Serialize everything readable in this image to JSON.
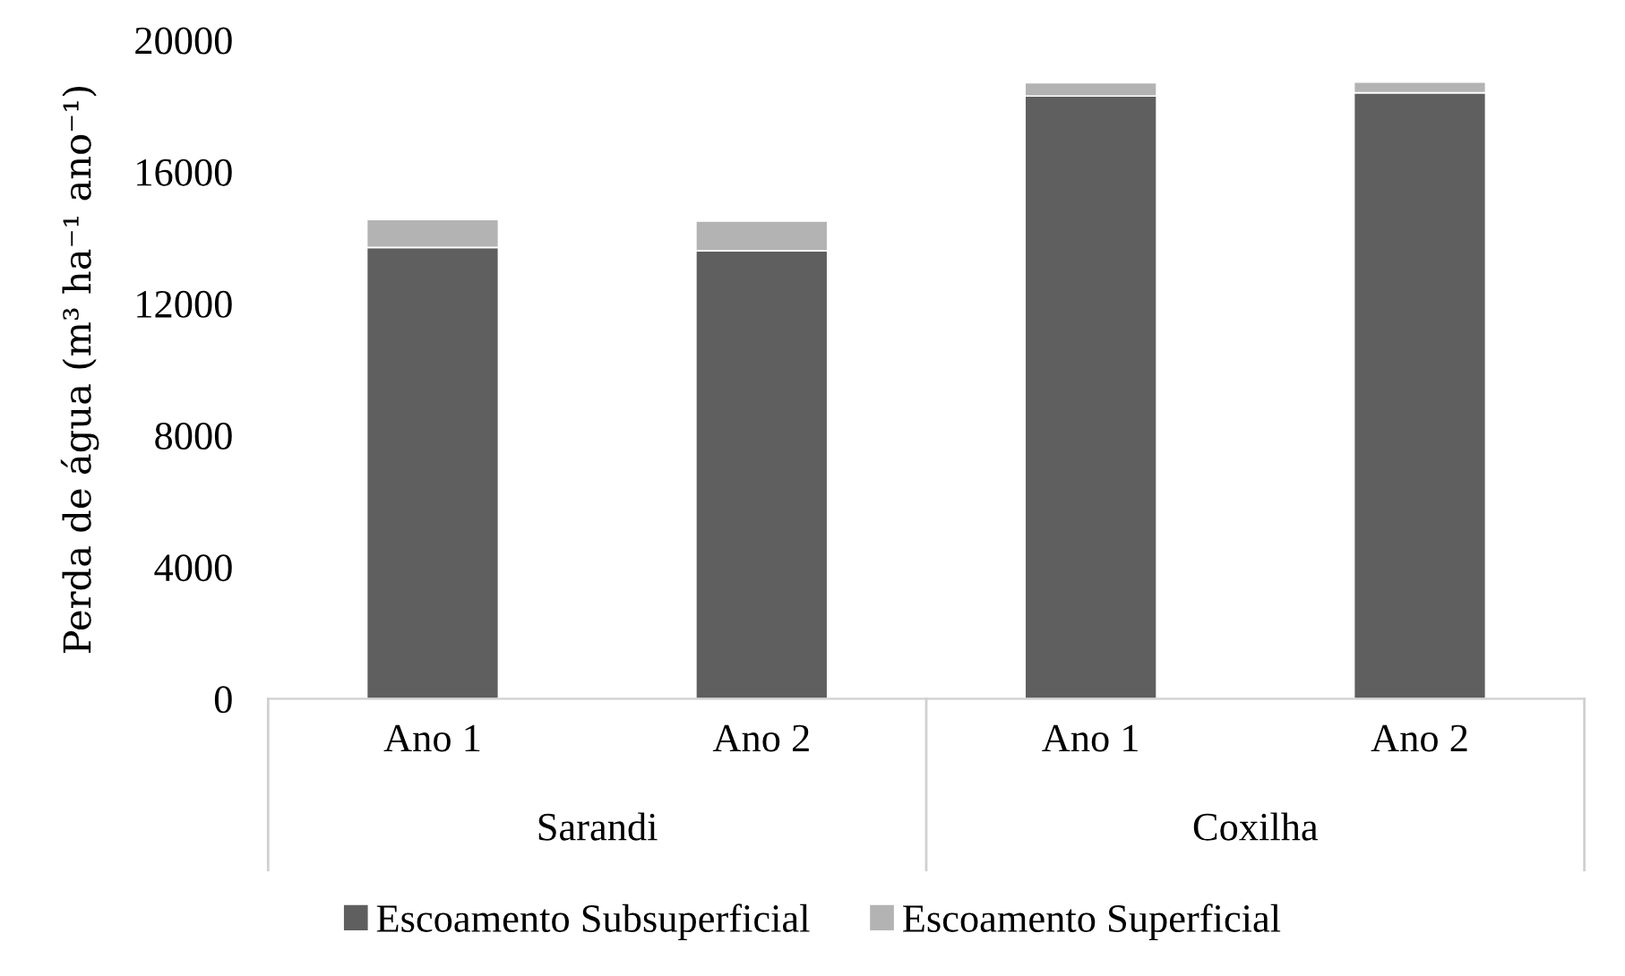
{
  "chart_data": {
    "type": "bar",
    "stacked": true,
    "ylabel": "Perda de água (m³ ha⁻¹ ano⁻¹)",
    "categories": [
      "Ano 1",
      "Ano 2",
      "Ano 1",
      "Ano 2"
    ],
    "annotations": [
      "Sarandi",
      "Coxilha"
    ],
    "series": [
      {
        "name": "Escoamento Subsuperficial",
        "color": "#5f5f5f",
        "values": [
          13700,
          13600,
          18300,
          18400
        ]
      },
      {
        "name": "Escoamento Superficial",
        "color": "#b3b3b3",
        "values": [
          850,
          900,
          400,
          320
        ]
      }
    ],
    "ylim": [
      0,
      20000
    ],
    "yticks": [
      0,
      4000,
      8000,
      12000,
      16000,
      20000
    ],
    "grid": false,
    "legend": "bottom"
  }
}
